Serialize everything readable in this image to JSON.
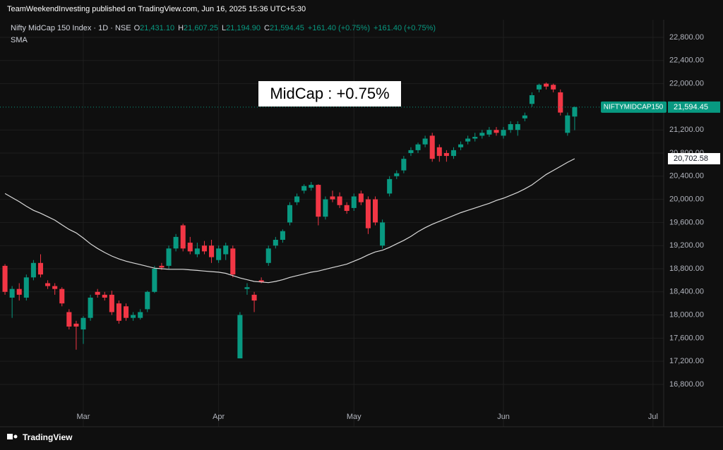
{
  "header": "TeamWeekendInvesting published on TradingView.com, Jun 16, 2025 15:36 UTC+5:30",
  "chart_data": {
    "type": "candlestick",
    "symbol_line": "Nifty MidCap 150 Index · 1D · NSE",
    "ohlc_legend": [
      {
        "key": "O",
        "text": "21,431.10"
      },
      {
        "key": "H",
        "text": "21,607.25"
      },
      {
        "key": "L",
        "text": "21,194.90"
      },
      {
        "key": "C",
        "text": "21,594.45"
      },
      {
        "key": "",
        "text": "+161.40 (+0.75%)"
      },
      {
        "key": "",
        "text": "+161.40 (+0.75%)"
      }
    ],
    "annotation": "MidCap : +0.75%",
    "price_tag": {
      "name": "NIFTYMIDCAP150",
      "text": "21,594.45"
    },
    "sma_tag": "20,702.58",
    "up_color": "#089981",
    "down_color": "#f23645",
    "categories": [
      null,
      null,
      null,
      null,
      null,
      null,
      null,
      null,
      null,
      null,
      null,
      null,
      null,
      null,
      null,
      null,
      null,
      null,
      null,
      null,
      null,
      null,
      null,
      null,
      null,
      null,
      null,
      null,
      null,
      null,
      null,
      null,
      null,
      null,
      null,
      null,
      null,
      null,
      null,
      null,
      null,
      null,
      null,
      null,
      null,
      null,
      null,
      null,
      null,
      null,
      null,
      null,
      null,
      null,
      null,
      null,
      null,
      null,
      null,
      null,
      null,
      null,
      null,
      null,
      null,
      null,
      null,
      null,
      null,
      null,
      null,
      null,
      null,
      null,
      null,
      null,
      null,
      null,
      null,
      null,
      null
    ],
    "open": [
      18850,
      18300,
      18450,
      18300,
      18650,
      18900,
      18550,
      18500,
      18450,
      18050,
      17850,
      17750,
      17950,
      18400,
      18350,
      18350,
      18200,
      18150,
      17950,
      17950,
      18100,
      18400,
      18850,
      18850,
      19150,
      19550,
      19250,
      19050,
      19200,
      19200,
      18950,
      19050,
      19150,
      17250,
      18450,
      18350,
      18600,
      18900,
      19200,
      19300,
      19600,
      19950,
      20150,
      20200,
      20250,
      19700,
      20050,
      20050,
      19900,
      19850,
      20100,
      20000,
      20000,
      19200,
      20100,
      20400,
      20500,
      20800,
      20850,
      20950,
      21100,
      20900,
      20800,
      20750,
      20900,
      21000,
      21050,
      21100,
      21120,
      21200,
      21100,
      21200,
      21200,
      21400,
      21650,
      21900,
      22000,
      21980,
      21850,
      21150,
      21431.1
    ],
    "high": [
      18880,
      18500,
      18550,
      18700,
      18950,
      19050,
      18600,
      18550,
      18480,
      18100,
      17900,
      17980,
      18350,
      18450,
      18400,
      18420,
      18250,
      18200,
      18050,
      18100,
      18420,
      18850,
      18900,
      19200,
      19400,
      19580,
      19350,
      19250,
      19280,
      19300,
      19200,
      19250,
      19200,
      18050,
      18550,
      18400,
      18650,
      19200,
      19350,
      19480,
      19950,
      20100,
      20260,
      20300,
      20260,
      20050,
      20150,
      20120,
      19950,
      20100,
      20150,
      20050,
      20050,
      19650,
      20400,
      20500,
      20750,
      20900,
      20980,
      21100,
      21150,
      20950,
      20850,
      20900,
      21000,
      21100,
      21150,
      21200,
      21250,
      21250,
      21250,
      21350,
      21350,
      21500,
      21850,
      22000,
      22020,
      22000,
      21900,
      21500,
      21607.25
    ],
    "low": [
      18350,
      17950,
      18250,
      18250,
      18600,
      18650,
      18450,
      18350,
      18150,
      17750,
      17400,
      17500,
      17900,
      18300,
      18250,
      18000,
      17850,
      17900,
      17900,
      17920,
      18050,
      18380,
      18780,
      18800,
      19100,
      19100,
      19050,
      19000,
      19050,
      18900,
      18900,
      18950,
      18650,
      17250,
      18350,
      18050,
      18550,
      18850,
      19150,
      19250,
      19550,
      19900,
      20100,
      20150,
      19550,
      19650,
      19950,
      19850,
      19750,
      19800,
      19900,
      19400,
      19550,
      19150,
      20050,
      20350,
      20450,
      20750,
      20800,
      20900,
      20650,
      20650,
      20650,
      20700,
      20850,
      20950,
      21000,
      21050,
      21080,
      21100,
      21050,
      21150,
      21100,
      21350,
      21600,
      21850,
      21900,
      21850,
      21450,
      21100,
      21194.9
    ],
    "close": [
      18400,
      18450,
      18350,
      18650,
      18900,
      18700,
      18500,
      18450,
      18200,
      17800,
      17800,
      17950,
      18300,
      18350,
      18300,
      18050,
      17900,
      17950,
      18000,
      18050,
      18400,
      18800,
      18820,
      19150,
      19350,
      19150,
      19100,
      19150,
      19100,
      19000,
      19150,
      19200,
      18700,
      18000,
      18480,
      18250,
      18570,
      19150,
      19300,
      19450,
      19900,
      20050,
      20230,
      20250,
      19700,
      20000,
      20000,
      19900,
      19800,
      20050,
      19950,
      19500,
      19600,
      19600,
      20350,
      20450,
      20700,
      20850,
      20950,
      21050,
      20700,
      20750,
      20750,
      20850,
      20950,
      21050,
      21080,
      21150,
      21200,
      21150,
      21200,
      21300,
      21300,
      21450,
      21800,
      21980,
      21950,
      21900,
      21500,
      21450,
      21594.45
    ],
    "sma": {
      "name": "SMA",
      "color": "#d9d9d9",
      "values": [
        20100,
        20030,
        19960,
        19880,
        19810,
        19760,
        19700,
        19640,
        19560,
        19480,
        19420,
        19330,
        19230,
        19150,
        19080,
        19020,
        18970,
        18930,
        18900,
        18870,
        18840,
        18810,
        18800,
        18790,
        18790,
        18790,
        18780,
        18770,
        18760,
        18750,
        18740,
        18720,
        18680,
        18640,
        18610,
        18580,
        18570,
        18560,
        18580,
        18610,
        18650,
        18680,
        18710,
        18740,
        18760,
        18790,
        18820,
        18850,
        18880,
        18930,
        18980,
        19040,
        19090,
        19120,
        19170,
        19230,
        19290,
        19360,
        19440,
        19510,
        19570,
        19620,
        19670,
        19720,
        19770,
        19810,
        19850,
        19890,
        19930,
        19980,
        20020,
        20070,
        20120,
        20180,
        20250,
        20340,
        20430,
        20500,
        20570,
        20640,
        20702.58
      ]
    },
    "xlim": [
      -0.7,
      92.5
    ],
    "xticks": [
      {
        "value": 11,
        "label": "Mar"
      },
      {
        "value": 30,
        "label": "Apr"
      },
      {
        "value": 49,
        "label": "May"
      },
      {
        "value": 70,
        "label": "Jun"
      },
      {
        "value": 91,
        "label": "Jul"
      }
    ],
    "ylim": [
      16068,
      23105
    ],
    "yticks": [
      {
        "value": 16800,
        "label": "16,800.00"
      },
      {
        "value": 17200,
        "label": "17,200.00"
      },
      {
        "value": 17600,
        "label": "17,600.00"
      },
      {
        "value": 18000,
        "label": "18,000.00"
      },
      {
        "value": 18400,
        "label": "18,400.00"
      },
      {
        "value": 18800,
        "label": "18,800.00"
      },
      {
        "value": 19200,
        "label": "19,200.00"
      },
      {
        "value": 19600,
        "label": "19,600.00"
      },
      {
        "value": 20000,
        "label": "20,000.00"
      },
      {
        "value": 20400,
        "label": "20,400.00"
      },
      {
        "value": 20800,
        "label": "20,800.00"
      },
      {
        "value": 21200,
        "label": "21,200.00"
      },
      {
        "value": 22000,
        "label": "22,000.00"
      },
      {
        "value": 22400,
        "label": "22,400.00"
      },
      {
        "value": 22800,
        "label": "22,800.00"
      }
    ],
    "grid": true
  },
  "footer": "TradingView"
}
